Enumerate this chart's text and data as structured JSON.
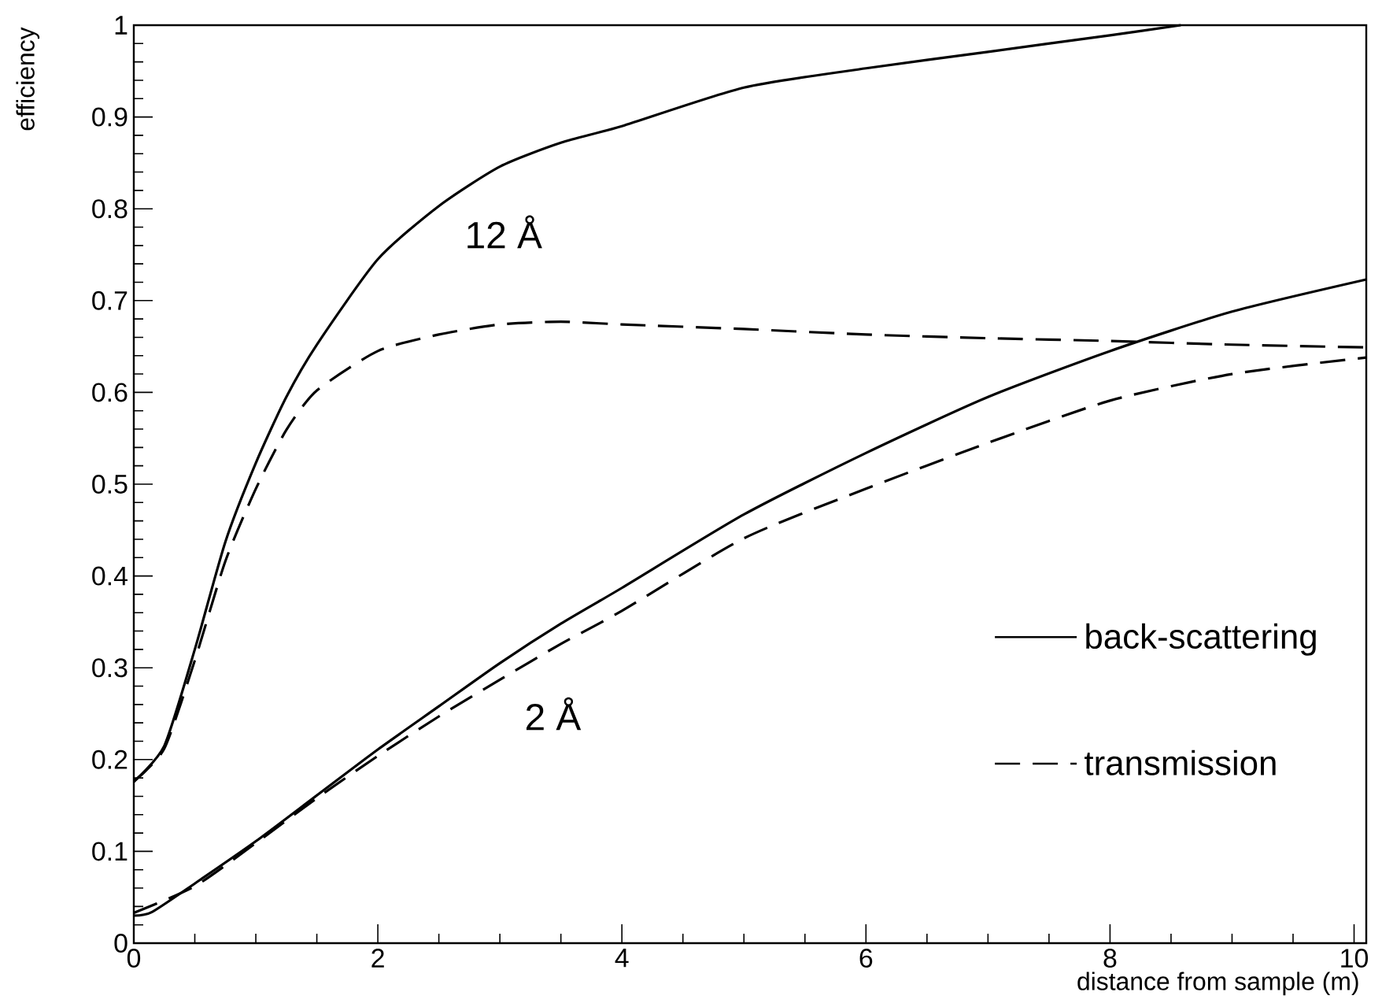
{
  "chart_data": {
    "type": "line",
    "xlabel": "distance from sample (m)",
    "ylabel": "efficiency",
    "xlim": [
      0,
      10.1
    ],
    "ylim": [
      0,
      1
    ],
    "xticks": [
      0,
      2,
      4,
      6,
      8,
      10
    ],
    "yticks": [
      0,
      0.1,
      0.2,
      0.3,
      0.4,
      0.5,
      0.6,
      0.7,
      0.8,
      0.9,
      1
    ],
    "grid": false,
    "legend": "bottom right",
    "series": [
      {
        "name": "back-scattering",
        "color": "#000000",
        "line_style": "solid",
        "x": [
          0,
          0.25,
          0.5,
          0.75,
          1,
          1.25,
          1.5,
          2,
          2.5,
          3,
          3.5,
          4,
          5,
          6,
          7,
          8,
          8.58
        ],
        "values": [
          0.176,
          0.215,
          0.32,
          0.437,
          0.523,
          0.595,
          0.652,
          0.745,
          0.803,
          0.846,
          0.872,
          0.89,
          0.932,
          0.953,
          0.971,
          0.989,
          1.0
        ]
      },
      {
        "name": "transmission",
        "color": "#000000",
        "line_style": "dashed",
        "x": [
          0,
          0.25,
          0.5,
          0.75,
          1,
          1.25,
          1.5,
          2,
          2.5,
          3,
          3.5,
          4,
          5,
          6,
          7,
          8,
          9,
          10.1
        ],
        "values": [
          0.176,
          0.212,
          0.308,
          0.416,
          0.495,
          0.559,
          0.602,
          0.645,
          0.663,
          0.674,
          0.677,
          0.674,
          0.669,
          0.663,
          0.659,
          0.656,
          0.652,
          0.649
        ]
      },
      {
        "color": "#000000",
        "line_style": "solid",
        "x": [
          0,
          0.15,
          0.5,
          1,
          1.5,
          2,
          2.5,
          3,
          3.5,
          4,
          5,
          6,
          7,
          8,
          9,
          10.1
        ],
        "values": [
          0.03,
          0.034,
          0.065,
          0.111,
          0.161,
          0.211,
          0.258,
          0.305,
          0.348,
          0.387,
          0.467,
          0.534,
          0.595,
          0.645,
          0.688,
          0.723
        ]
      },
      {
        "color": "#000000",
        "line_style": "dashed",
        "x": [
          0,
          0.5,
          1,
          1.5,
          2,
          2.5,
          3,
          3.5,
          4,
          5,
          6,
          7,
          8,
          9,
          10.1
        ],
        "values": [
          0.033,
          0.062,
          0.109,
          0.158,
          0.204,
          0.247,
          0.287,
          0.326,
          0.362,
          0.441,
          0.495,
          0.545,
          0.591,
          0.62,
          0.638
        ]
      }
    ],
    "annotations": [
      "12 Å",
      "2 Å"
    ]
  }
}
